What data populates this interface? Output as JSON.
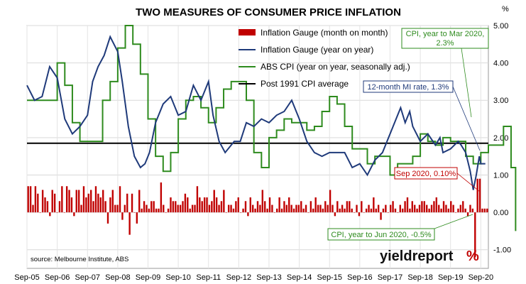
{
  "chart_data": {
    "type": "bar+line",
    "title": "TWO MEASURES OF CONSUMER PRICE INFLATION",
    "y_unit": "%",
    "ylim": [
      -1.5,
      5.0
    ],
    "y_ticks": [
      "5.00",
      "4.00",
      "3.00",
      "2.00",
      "1.00",
      "0.00",
      "-1.00"
    ],
    "y_tick_values": [
      5,
      4,
      3,
      2,
      1,
      0,
      -1
    ],
    "x_start": "2005-09",
    "x_end": "2020-09",
    "x_ticks": [
      "Sep-05",
      "Sep-06",
      "Sep-07",
      "Sep-08",
      "Sep-09",
      "Sep-10",
      "Sep-11",
      "Sep-12",
      "Sep-13",
      "Sep-14",
      "Sep-15",
      "Sep-16",
      "Sep-17",
      "Sep-18",
      "Sep-19",
      "Sep-20"
    ],
    "legend": [
      {
        "label": "Inflation Gauge (month on month)",
        "color": "#c00000",
        "kind": "bar"
      },
      {
        "label": "Inflation Gauge (year on year)",
        "color": "#1f3a7a",
        "kind": "line"
      },
      {
        "label": "ABS CPI (year on year, seasonally adj.)",
        "color": "#2e8b1e",
        "kind": "line"
      },
      {
        "label": "Post 1991 CPI average",
        "color": "#000000",
        "kind": "hline"
      }
    ],
    "post_1991_average": 1.85,
    "gauge_mom": [
      0.7,
      0.7,
      0.2,
      0.7,
      0.5,
      0.0,
      0.6,
      0.4,
      0.3,
      -0.1,
      0.6,
      0.5,
      0.0,
      0.3,
      0.7,
      0.0,
      0.7,
      0.6,
      0.4,
      -0.1,
      0.6,
      0.6,
      0.2,
      0.7,
      0.4,
      0.5,
      0.6,
      0.3,
      0.7,
      0.5,
      0.4,
      0.6,
      0.3,
      -0.3,
      0.4,
      0.6,
      0.2,
      0.2,
      0.7,
      -0.2,
      0.2,
      0.5,
      -0.6,
      0.5,
      0.0,
      -0.3,
      0.6,
      0.1,
      0.3,
      0.2,
      0.1,
      0.3,
      0.3,
      0.1,
      0.1,
      0.8,
      0.2,
      0.0,
      0.1,
      0.4,
      0.3,
      0.3,
      0.2,
      0.2,
      0.3,
      0.5,
      0.4,
      0.1,
      0.2,
      0.2,
      0.7,
      0.4,
      0.3,
      0.4,
      0.4,
      0.2,
      0.3,
      0.6,
      0.4,
      0.2,
      0.3,
      0.6,
      0.0,
      0.2,
      0.2,
      0.1,
      0.3,
      0.4,
      0.0,
      0.1,
      0.3,
      -0.1,
      0.4,
      0.2,
      0.1,
      0.3,
      0.2,
      0.6,
      0.3,
      0.1,
      0.4,
      0.2,
      0.0,
      0.1,
      0.4,
      0.1,
      0.3,
      0.2,
      0.4,
      0.2,
      0.1,
      0.2,
      0.2,
      0.3,
      0.1,
      0.2,
      0.0,
      0.3,
      0.1,
      0.4,
      0.2,
      0.2,
      0.1,
      0.3,
      0.2,
      0.6,
      0.2,
      -0.1,
      0.3,
      0.1,
      0.2,
      0.1,
      0.3,
      0.3,
      0.1,
      0.0,
      0.2,
      -0.1,
      0.3,
      0.0,
      0.1,
      0.2,
      0.1,
      0.4,
      0.1,
      0.2,
      -0.2,
      0.1,
      0.2,
      0.0,
      0.2,
      0.3,
      0.1,
      0.0,
      0.2,
      0.1,
      0.3,
      0.4,
      0.1,
      0.3,
      0.2,
      0.1,
      0.2,
      0.3,
      0.3,
      0.2,
      0.1,
      0.2,
      0.3,
      0.4,
      0.2,
      0.1,
      0.3,
      0.2,
      0.1,
      0.3,
      0.2,
      0.0,
      0.1,
      0.2,
      0.3,
      0.1,
      -0.1,
      0.2,
      0.1,
      -1.2,
      0.9,
      0.9,
      0.1,
      0.1,
      0.1
    ],
    "gauge_yoy": [
      [
        2005.75,
        3.4
      ],
      [
        2006.0,
        3.0
      ],
      [
        2006.25,
        3.1
      ],
      [
        2006.5,
        3.9
      ],
      [
        2006.75,
        3.6
      ],
      [
        2007.0,
        2.5
      ],
      [
        2007.25,
        2.1
      ],
      [
        2007.5,
        2.3
      ],
      [
        2007.75,
        2.6
      ],
      [
        2007.92,
        3.5
      ],
      [
        2008.1,
        3.9
      ],
      [
        2008.3,
        4.2
      ],
      [
        2008.5,
        4.7
      ],
      [
        2008.75,
        4.3
      ],
      [
        2008.9,
        3.5
      ],
      [
        2009.1,
        2.3
      ],
      [
        2009.3,
        1.5
      ],
      [
        2009.5,
        1.2
      ],
      [
        2009.65,
        1.3
      ],
      [
        2009.8,
        1.6
      ],
      [
        2010.0,
        2.4
      ],
      [
        2010.25,
        2.9
      ],
      [
        2010.5,
        3.1
      ],
      [
        2010.75,
        2.6
      ],
      [
        2011.0,
        2.7
      ],
      [
        2011.25,
        3.4
      ],
      [
        2011.5,
        3.0
      ],
      [
        2011.75,
        3.5
      ],
      [
        2011.9,
        2.6
      ],
      [
        2012.1,
        1.9
      ],
      [
        2012.3,
        1.6
      ],
      [
        2012.6,
        1.9
      ],
      [
        2012.8,
        1.9
      ],
      [
        2013.0,
        2.4
      ],
      [
        2013.25,
        2.3
      ],
      [
        2013.5,
        2.5
      ],
      [
        2013.75,
        2.4
      ],
      [
        2014.0,
        2.6
      ],
      [
        2014.25,
        2.7
      ],
      [
        2014.5,
        3.0
      ],
      [
        2014.75,
        2.5
      ],
      [
        2015.0,
        1.9
      ],
      [
        2015.25,
        1.6
      ],
      [
        2015.5,
        1.5
      ],
      [
        2015.75,
        1.6
      ],
      [
        2016.0,
        1.6
      ],
      [
        2016.25,
        1.6
      ],
      [
        2016.5,
        1.2
      ],
      [
        2016.75,
        1.3
      ],
      [
        2017.0,
        1.0
      ],
      [
        2017.25,
        1.4
      ],
      [
        2017.5,
        1.6
      ],
      [
        2017.75,
        2.1
      ],
      [
        2018.0,
        2.6
      ],
      [
        2018.1,
        2.8
      ],
      [
        2018.25,
        2.4
      ],
      [
        2018.4,
        2.7
      ],
      [
        2018.5,
        2.3
      ],
      [
        2018.75,
        1.9
      ],
      [
        2019.0,
        2.1
      ],
      [
        2019.25,
        1.8
      ],
      [
        2019.4,
        2.0
      ],
      [
        2019.5,
        1.6
      ],
      [
        2019.75,
        1.7
      ],
      [
        2020.0,
        1.9
      ],
      [
        2020.1,
        1.8
      ],
      [
        2020.25,
        1.6
      ],
      [
        2020.4,
        1.1
      ],
      [
        2020.5,
        0.6
      ],
      [
        2020.6,
        1.0
      ],
      [
        2020.7,
        1.5
      ],
      [
        2020.75,
        1.3
      ],
      [
        2020.9,
        1.3
      ]
    ],
    "abs_cpi": [
      [
        2005.75,
        3.0
      ],
      [
        2006.0,
        3.0
      ],
      [
        2006.25,
        3.0
      ],
      [
        2006.5,
        3.0
      ],
      [
        2006.75,
        4.0
      ],
      [
        2007.0,
        3.4
      ],
      [
        2007.25,
        2.4
      ],
      [
        2007.5,
        1.9
      ],
      [
        2007.75,
        1.9
      ],
      [
        2008.0,
        1.9
      ],
      [
        2008.25,
        3.0
      ],
      [
        2008.5,
        3.5
      ],
      [
        2008.75,
        4.4
      ],
      [
        2009.0,
        5.0
      ],
      [
        2009.25,
        4.5
      ],
      [
        2009.5,
        3.7
      ],
      [
        2009.75,
        2.5
      ],
      [
        2010.0,
        1.5
      ],
      [
        2010.25,
        1.1
      ],
      [
        2010.5,
        1.6
      ],
      [
        2010.75,
        2.5
      ],
      [
        2011.0,
        3.0
      ],
      [
        2011.25,
        3.1
      ],
      [
        2011.5,
        2.8
      ],
      [
        2011.75,
        2.4
      ],
      [
        2012.0,
        2.8
      ],
      [
        2012.25,
        3.3
      ],
      [
        2012.5,
        3.5
      ],
      [
        2012.75,
        3.5
      ],
      [
        2013.0,
        3.0
      ],
      [
        2013.25,
        1.6
      ],
      [
        2013.5,
        1.2
      ],
      [
        2013.75,
        2.0
      ],
      [
        2014.0,
        2.2
      ],
      [
        2014.25,
        2.5
      ],
      [
        2014.5,
        2.4
      ],
      [
        2014.75,
        2.4
      ],
      [
        2015.0,
        2.2
      ],
      [
        2015.25,
        2.3
      ],
      [
        2015.5,
        2.7
      ],
      [
        2015.75,
        3.1
      ],
      [
        2016.0,
        2.9
      ],
      [
        2016.25,
        2.3
      ],
      [
        2016.5,
        1.7
      ],
      [
        2016.75,
        1.7
      ],
      [
        2017.0,
        1.3
      ],
      [
        2017.25,
        1.5
      ],
      [
        2017.5,
        1.5
      ],
      [
        2017.75,
        1.0
      ],
      [
        2018.0,
        1.3
      ],
      [
        2018.25,
        1.3
      ],
      [
        2018.5,
        1.5
      ],
      [
        2018.75,
        2.1
      ],
      [
        2019.0,
        1.9
      ],
      [
        2019.25,
        1.8
      ],
      [
        2019.5,
        2.0
      ],
      [
        2019.75,
        1.9
      ],
      [
        2020.0,
        1.9
      ],
      [
        2020.25,
        1.5
      ],
      [
        2020.5,
        1.3
      ],
      [
        2020.75,
        1.6
      ],
      [
        2021.0,
        1.8
      ],
      [
        2021.25,
        1.8
      ],
      [
        2021.5,
        2.3
      ],
      [
        2021.75,
        1.2
      ],
      [
        2021.9,
        -0.5
      ]
    ]
  },
  "annotations": {
    "cpi_mar": {
      "line1": "CPI, year to Mar 2020,",
      "line2": "2.3%"
    },
    "mi_rate": "12-month MI rate, 1.3%",
    "sep_2020": "Sep 2020, 0.10%",
    "cpi_jun": "CPI, year to Jun 2020, -0.5%"
  },
  "source": "source: Melbourne Institute, ABS",
  "brand": {
    "main": "yieldreport",
    "suffix": "%"
  }
}
